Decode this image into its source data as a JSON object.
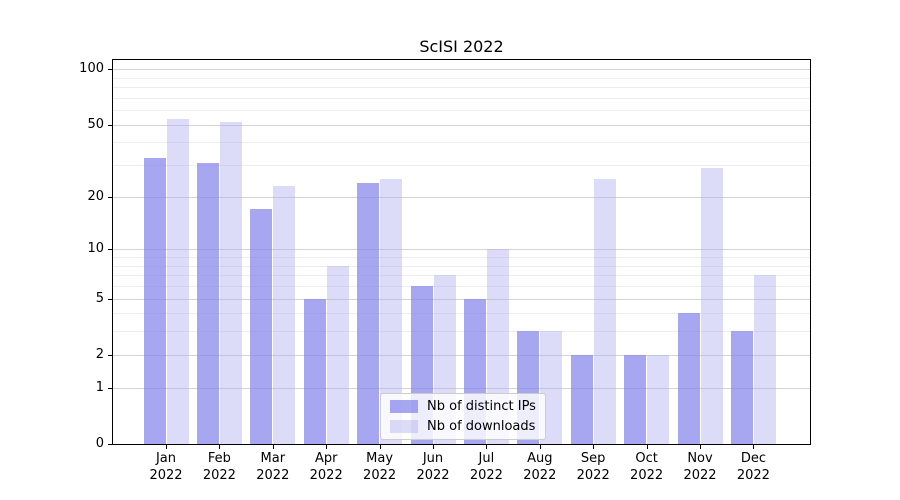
{
  "chart_data": {
    "type": "bar",
    "title": "ScISI 2022",
    "categories": [
      "Jan",
      "Feb",
      "Mar",
      "Apr",
      "May",
      "Jun",
      "Jul",
      "Aug",
      "Sep",
      "Oct",
      "Nov",
      "Dec"
    ],
    "category_year": "2022",
    "series": [
      {
        "name": "Nb of distinct IPs",
        "key": "ips",
        "color_hex": "#a8a8f0",
        "color": "rgba(131,131,236,0.72)",
        "values": [
          33,
          31,
          17,
          5,
          24,
          6,
          5,
          3,
          2,
          2,
          4,
          3
        ]
      },
      {
        "name": "Nb of downloads",
        "key": "downloads",
        "color_hex": "#dcdcf8",
        "color": "rgba(172,172,238,0.42)",
        "values": [
          54,
          52,
          23,
          8,
          25,
          7,
          10,
          3,
          25,
          2,
          29,
          7
        ]
      }
    ],
    "xlabel": "",
    "ylabel": "",
    "yscale": "log1p",
    "ylim": [
      0,
      112
    ],
    "yticks": [
      0,
      1,
      2,
      5,
      10,
      20,
      50,
      100
    ],
    "minor_gridlines": [
      3,
      4,
      6,
      7,
      8,
      9,
      30,
      40,
      60,
      70,
      80,
      90
    ],
    "grid": true,
    "legend_position": "lower center",
    "colors": {
      "grid_major": "#d4d4d4",
      "grid_minor": "#ededed",
      "axis": "#000000",
      "background": "#ffffff"
    }
  }
}
